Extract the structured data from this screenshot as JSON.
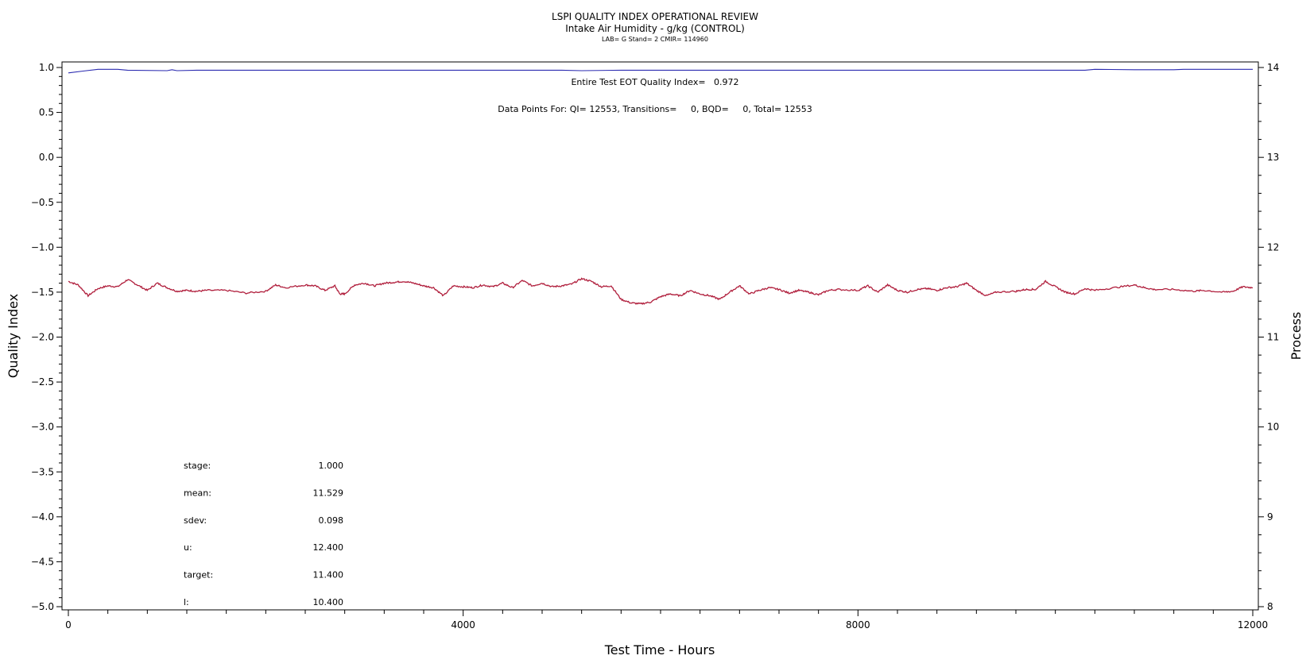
{
  "chart_data": {
    "type": "line",
    "title": "LSPI QUALITY INDEX OPERATIONAL REVIEW",
    "subtitle": "Intake Air Humidity - g/kg (CONTROL)",
    "subtitle2": "LAB= G Stand= 2 CMIR= 114960",
    "annotation_qi": "Entire Test EOT Quality Index=   0.972",
    "annotation_points": "Data Points For: QI= 12553, Transitions=     0, BQD=     0, Total= 12553",
    "xlabel": "Test Time - Hours",
    "ylabel_left": "Quality Index",
    "ylabel_right": "Process",
    "xlim": [
      0,
      12000
    ],
    "ylim_left": [
      -5.0,
      1.0
    ],
    "ylim_right": [
      8,
      14
    ],
    "x_ticks": [
      "0",
      "4000",
      "8000",
      "12000"
    ],
    "y_left_ticks": [
      "1.0",
      "0.5",
      "0.0",
      "-0.5",
      "-1.0",
      "-1.5",
      "-2.0",
      "-2.5",
      "-3.0",
      "-3.5",
      "-4.0",
      "-4.5",
      "-5.0"
    ],
    "y_right_ticks": [
      "14",
      "13",
      "12",
      "11",
      "10",
      "9",
      "8"
    ],
    "series": [
      {
        "axis": "left",
        "color": "#2b2bb0",
        "points": [
          [
            0,
            0.94
          ],
          [
            150,
            0.96
          ],
          [
            300,
            0.98
          ],
          [
            500,
            0.98
          ],
          [
            600,
            0.97
          ],
          [
            1000,
            0.965
          ],
          [
            1050,
            0.975
          ],
          [
            1100,
            0.965
          ],
          [
            1300,
            0.97
          ],
          [
            3000,
            0.97
          ],
          [
            5000,
            0.97
          ],
          [
            5200,
            0.965
          ],
          [
            5600,
            0.97
          ],
          [
            10300,
            0.97
          ],
          [
            10400,
            0.98
          ],
          [
            10800,
            0.975
          ],
          [
            11200,
            0.975
          ],
          [
            11300,
            0.98
          ],
          [
            12000,
            0.98
          ]
        ]
      },
      {
        "axis": "right",
        "color": "#b01e3c",
        "points": [
          [
            0,
            11.62
          ],
          [
            100,
            11.58
          ],
          [
            200,
            11.46
          ],
          [
            300,
            11.54
          ],
          [
            400,
            11.57
          ],
          [
            500,
            11.56
          ],
          [
            600,
            11.64
          ],
          [
            700,
            11.58
          ],
          [
            800,
            11.52
          ],
          [
            900,
            11.6
          ],
          [
            1000,
            11.55
          ],
          [
            1100,
            11.51
          ],
          [
            1200,
            11.52
          ],
          [
            1300,
            11.51
          ],
          [
            1400,
            11.52
          ],
          [
            1600,
            11.52
          ],
          [
            1800,
            11.49
          ],
          [
            2000,
            11.51
          ],
          [
            2100,
            11.58
          ],
          [
            2200,
            11.55
          ],
          [
            2400,
            11.58
          ],
          [
            2500,
            11.57
          ],
          [
            2600,
            11.52
          ],
          [
            2700,
            11.57
          ],
          [
            2750,
            11.48
          ],
          [
            2800,
            11.48
          ],
          [
            2900,
            11.58
          ],
          [
            3000,
            11.6
          ],
          [
            3100,
            11.57
          ],
          [
            3200,
            11.6
          ],
          [
            3300,
            11.61
          ],
          [
            3400,
            11.62
          ],
          [
            3500,
            11.6
          ],
          [
            3600,
            11.57
          ],
          [
            3700,
            11.55
          ],
          [
            3800,
            11.46
          ],
          [
            3900,
            11.57
          ],
          [
            4000,
            11.56
          ],
          [
            4100,
            11.55
          ],
          [
            4200,
            11.58
          ],
          [
            4300,
            11.56
          ],
          [
            4400,
            11.6
          ],
          [
            4500,
            11.55
          ],
          [
            4600,
            11.63
          ],
          [
            4700,
            11.57
          ],
          [
            4800,
            11.6
          ],
          [
            4900,
            11.56
          ],
          [
            5000,
            11.57
          ],
          [
            5100,
            11.59
          ],
          [
            5200,
            11.65
          ],
          [
            5300,
            11.62
          ],
          [
            5400,
            11.56
          ],
          [
            5500,
            11.57
          ],
          [
            5600,
            11.42
          ],
          [
            5700,
            11.38
          ],
          [
            5800,
            11.37
          ],
          [
            5900,
            11.39
          ],
          [
            6000,
            11.45
          ],
          [
            6100,
            11.48
          ],
          [
            6200,
            11.46
          ],
          [
            6300,
            11.52
          ],
          [
            6400,
            11.48
          ],
          [
            6500,
            11.46
          ],
          [
            6600,
            11.42
          ],
          [
            6700,
            11.5
          ],
          [
            6800,
            11.57
          ],
          [
            6900,
            11.48
          ],
          [
            7000,
            11.52
          ],
          [
            7100,
            11.55
          ],
          [
            7200,
            11.53
          ],
          [
            7300,
            11.49
          ],
          [
            7400,
            11.52
          ],
          [
            7500,
            11.5
          ],
          [
            7600,
            11.47
          ],
          [
            7700,
            11.52
          ],
          [
            7800,
            11.53
          ],
          [
            8000,
            11.52
          ],
          [
            8100,
            11.57
          ],
          [
            8200,
            11.5
          ],
          [
            8300,
            11.58
          ],
          [
            8400,
            11.52
          ],
          [
            8500,
            11.5
          ],
          [
            8600,
            11.53
          ],
          [
            8700,
            11.54
          ],
          [
            8800,
            11.52
          ],
          [
            8900,
            11.55
          ],
          [
            9000,
            11.56
          ],
          [
            9100,
            11.6
          ],
          [
            9200,
            11.52
          ],
          [
            9300,
            11.46
          ],
          [
            9400,
            11.5
          ],
          [
            9600,
            11.51
          ],
          [
            9700,
            11.53
          ],
          [
            9800,
            11.53
          ],
          [
            9900,
            11.62
          ],
          [
            10000,
            11.56
          ],
          [
            10100,
            11.5
          ],
          [
            10200,
            11.48
          ],
          [
            10300,
            11.54
          ],
          [
            10400,
            11.52
          ],
          [
            10600,
            11.55
          ],
          [
            10800,
            11.58
          ],
          [
            10900,
            11.55
          ],
          [
            11000,
            11.53
          ],
          [
            11200,
            11.53
          ],
          [
            11400,
            11.51
          ],
          [
            11500,
            11.52
          ],
          [
            11700,
            11.5
          ],
          [
            11800,
            11.51
          ],
          [
            11900,
            11.56
          ],
          [
            12000,
            11.55
          ]
        ]
      }
    ],
    "stats": [
      {
        "label": "stage:",
        "value": "1.000"
      },
      {
        "label": "mean:",
        "value": "11.529"
      },
      {
        "label": "sdev:",
        "value": "0.098"
      },
      {
        "label": "u:",
        "value": "12.400"
      },
      {
        "label": "target:",
        "value": "11.400"
      },
      {
        "label": "l:",
        "value": "10.400"
      }
    ]
  }
}
